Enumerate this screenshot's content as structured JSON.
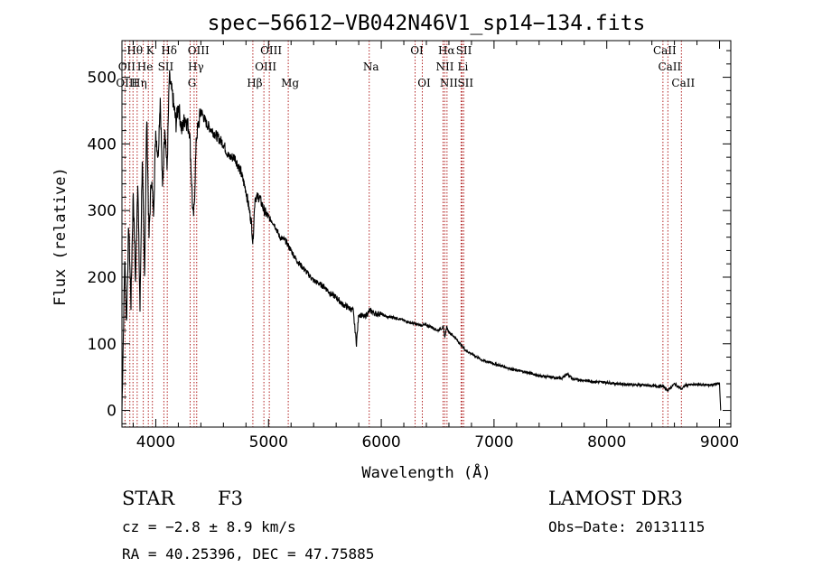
{
  "chart_data": {
    "type": "line",
    "title": "spec−56612−VB042N46V1_sp14−134.fits",
    "xlabel": "Wavelength (Å)",
    "ylabel": "Flux (relative)",
    "xlim": [
      3700,
      9100
    ],
    "ylim": [
      -25,
      555
    ],
    "xticks": [
      4000,
      5000,
      6000,
      7000,
      8000,
      9000
    ],
    "yticks": [
      0,
      100,
      200,
      300,
      400,
      500
    ],
    "series": [
      {
        "name": "flux",
        "x": [
          3700,
          3710,
          3725,
          3740,
          3760,
          3780,
          3800,
          3820,
          3840,
          3860,
          3880,
          3900,
          3920,
          3940,
          3960,
          3980,
          4000,
          4020,
          4040,
          4060,
          4080,
          4100,
          4120,
          4150,
          4180,
          4200,
          4230,
          4260,
          4300,
          4330,
          4340,
          4360,
          4400,
          4450,
          4500,
          4550,
          4600,
          4650,
          4700,
          4750,
          4800,
          4850,
          4861,
          4880,
          4920,
          4960,
          5000,
          5050,
          5100,
          5150,
          5200,
          5250,
          5300,
          5350,
          5400,
          5450,
          5500,
          5550,
          5600,
          5650,
          5700,
          5750,
          5780,
          5800,
          5850,
          5900,
          5950,
          6000,
          6050,
          6100,
          6150,
          6200,
          6250,
          6300,
          6350,
          6400,
          6450,
          6500,
          6550,
          6563,
          6580,
          6600,
          6650,
          6700,
          6750,
          6800,
          6850,
          6900,
          6950,
          7000,
          7100,
          7200,
          7300,
          7400,
          7500,
          7600,
          7650,
          7700,
          7800,
          7900,
          8000,
          8100,
          8200,
          8300,
          8400,
          8500,
          8542,
          8600,
          8662,
          8700,
          8800,
          8900,
          9000,
          9010
        ],
        "values": [
          0,
          90,
          230,
          130,
          280,
          160,
          330,
          190,
          350,
          150,
          380,
          200,
          440,
          260,
          350,
          300,
          420,
          380,
          470,
          330,
          430,
          360,
          500,
          470,
          430,
          460,
          420,
          440,
          420,
          290,
          300,
          410,
          450,
          430,
          420,
          410,
          400,
          380,
          380,
          360,
          330,
          280,
          250,
          320,
          320,
          300,
          290,
          280,
          260,
          255,
          240,
          225,
          215,
          205,
          195,
          190,
          185,
          175,
          170,
          160,
          155,
          150,
          100,
          145,
          140,
          150,
          145,
          145,
          140,
          140,
          138,
          135,
          132,
          130,
          128,
          128,
          125,
          120,
          125,
          110,
          125,
          118,
          110,
          100,
          90,
          85,
          80,
          75,
          73,
          70,
          65,
          60,
          57,
          52,
          50,
          48,
          55,
          47,
          45,
          43,
          42,
          40,
          39,
          38,
          37,
          36,
          30,
          40,
          32,
          38,
          39,
          38,
          40,
          0
        ]
      }
    ],
    "annotations": [
      {
        "text": "Hθ",
        "x": 3798,
        "row": 0
      },
      {
        "text": "K",
        "x": 3934,
        "row": 0
      },
      {
        "text": "Hδ",
        "x": 4102,
        "row": 0
      },
      {
        "text": "OIII",
        "x": 4363,
        "row": 0
      },
      {
        "text": "OIII",
        "x": 5007,
        "row": 0
      },
      {
        "text": "OI",
        "x": 6300,
        "row": 0
      },
      {
        "text": "Hα",
        "x": 6563,
        "row": 0
      },
      {
        "text": "SII",
        "x": 6717,
        "row": 0
      },
      {
        "text": "CaII",
        "x": 8498,
        "row": 0
      },
      {
        "text": "OII",
        "x": 3727,
        "row": 1
      },
      {
        "text": "He",
        "x": 3889,
        "row": 1
      },
      {
        "text": "SII",
        "x": 4072,
        "row": 1
      },
      {
        "text": "Hγ",
        "x": 4340,
        "row": 1
      },
      {
        "text": "OIII",
        "x": 4959,
        "row": 1
      },
      {
        "text": "Na",
        "x": 5893,
        "row": 1
      },
      {
        "text": "NII",
        "x": 6548,
        "row": 1
      },
      {
        "text": "Li",
        "x": 6708,
        "row": 1
      },
      {
        "text": "CaII",
        "x": 8542,
        "row": 1
      },
      {
        "text": "OIII",
        "x": 3727,
        "row": 2
      },
      {
        "text": "Hη",
        "x": 3835,
        "row": 2
      },
      {
        "text": "G",
        "x": 4305,
        "row": 2
      },
      {
        "text": "Hβ",
        "x": 4861,
        "row": 2
      },
      {
        "text": "Mg",
        "x": 5175,
        "row": 2
      },
      {
        "text": "OI",
        "x": 6364,
        "row": 2
      },
      {
        "text": "NII",
        "x": 6583,
        "row": 2
      },
      {
        "text": "SII",
        "x": 6731,
        "row": 2
      },
      {
        "text": "CaII",
        "x": 8662,
        "row": 2
      }
    ],
    "line_positions": [
      3727,
      3770,
      3798,
      3835,
      3889,
      3934,
      3970,
      4072,
      4102,
      4305,
      4340,
      4363,
      4861,
      4959,
      5007,
      5175,
      5893,
      6300,
      6364,
      6548,
      6563,
      6583,
      6708,
      6717,
      6731,
      8498,
      8542,
      8662
    ],
    "colors": {
      "line": "#000000",
      "marker_lines": "#b22222"
    }
  },
  "info": {
    "object_class": "STAR",
    "subclass": "F3",
    "survey": "LAMOST DR3",
    "redshift": "cz = −2.8 ± 8.9 km/s",
    "obs_date": "Obs−Date: 20131115",
    "coords": "RA =  40.25396, DEC =  47.75885"
  }
}
